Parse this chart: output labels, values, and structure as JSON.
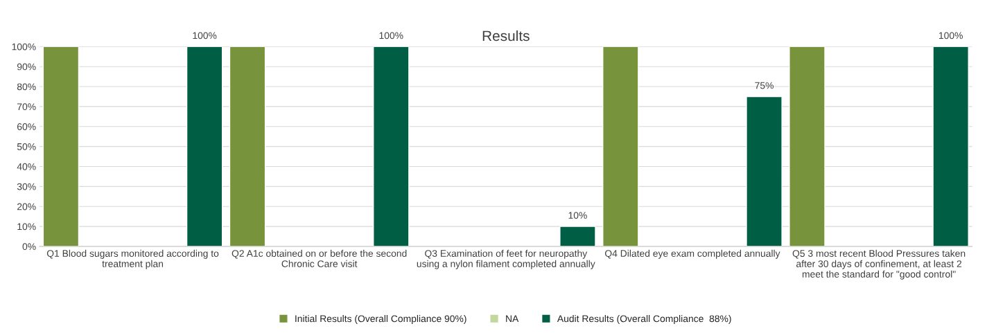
{
  "chart_data": {
    "type": "bar",
    "title": "Results",
    "categories": [
      "Q1 Blood sugars monitored according to\ntreatment plan",
      "Q2 A1c obtained on or before the second\nChronic Care visit",
      "Q3 Examination of feet for neuropathy\nusing a nylon filament completed annually",
      "Q4 Dilated eye exam completed annually",
      "Q5 3 most recent Blood Pressures taken\nafter 30 days of confinement, at least 2\nmeet the standard for \"good control\""
    ],
    "series": [
      {
        "name": "Initial Results (Overall Compliance 90%)",
        "color": "#77933c",
        "values": [
          100,
          100,
          null,
          100,
          100
        ]
      },
      {
        "name": "NA",
        "color": "#c3d69b",
        "values": [
          null,
          null,
          null,
          null,
          null
        ]
      },
      {
        "name": "Audit Results (Overall Compliance  88%)",
        "color": "#005e45",
        "values": [
          100,
          100,
          10,
          75,
          100
        ],
        "value_labels": [
          "100%",
          "100%",
          "10%",
          "75%",
          "100%"
        ]
      }
    ],
    "ylim": [
      0,
      100
    ],
    "yticks": [
      {
        "value": 0,
        "label": "0%"
      },
      {
        "value": 10,
        "label": "10%"
      },
      {
        "value": 20,
        "label": "20%"
      },
      {
        "value": 30,
        "label": "30%"
      },
      {
        "value": 40,
        "label": "40%"
      },
      {
        "value": 50,
        "label": "50%"
      },
      {
        "value": 60,
        "label": "60%"
      },
      {
        "value": 70,
        "label": "70%"
      },
      {
        "value": 80,
        "label": "80%"
      },
      {
        "value": 90,
        "label": "90%"
      },
      {
        "value": 100,
        "label": "100%"
      }
    ],
    "grid": "y",
    "legend": "bottom"
  }
}
